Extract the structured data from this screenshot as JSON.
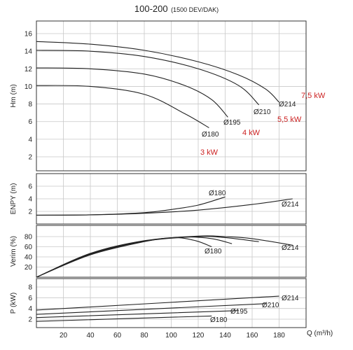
{
  "title": {
    "main": "100-200",
    "sub": "(1500 DEV/DAK)"
  },
  "chart_data": {
    "type": "line",
    "xlabel": "Q (m³/h)",
    "x_ticks": [
      20,
      40,
      60,
      80,
      100,
      120,
      140,
      160,
      180
    ],
    "xlim": [
      0,
      200
    ],
    "grid": true,
    "panels": [
      {
        "id": "head",
        "ylabel": "Hm (m)",
        "ylim": [
          0,
          17
        ],
        "y_ticks": [
          2,
          4,
          6,
          8,
          10,
          12,
          14,
          16
        ],
        "series": [
          {
            "name": "Ø214",
            "x": [
              0,
              40,
              80,
              120,
              150,
              170,
              180
            ],
            "y": [
              15.1,
              14.8,
              14.1,
              12.8,
              11.3,
              9.7,
              8.2
            ]
          },
          {
            "name": "Ø210",
            "x": [
              0,
              40,
              80,
              120,
              150,
              165
            ],
            "y": [
              14.1,
              14.0,
              13.4,
              12.0,
              10.1,
              7.9
            ]
          },
          {
            "name": "Ø195",
            "x": [
              0,
              40,
              80,
              110,
              130,
              142
            ],
            "y": [
              12.1,
              12.0,
              11.4,
              10.1,
              8.5,
              6.5
            ]
          },
          {
            "name": "Ø180",
            "x": [
              0,
              40,
              80,
              110,
              128
            ],
            "y": [
              10.1,
              10.0,
              9.1,
              6.9,
              5.3
            ]
          }
        ],
        "power_labels": [
          "7,5 kW",
          "5,5 kW",
          "4 kW",
          "3 kW"
        ]
      },
      {
        "id": "npsh",
        "ylabel": "ENPY (m)",
        "ylim": [
          0,
          8
        ],
        "y_ticks": [
          2,
          4,
          6
        ],
        "series": [
          {
            "name": "Ø214",
            "x": [
              0,
              40,
              80,
              120,
              160,
              190
            ],
            "y": [
              1.4,
              1.45,
              1.7,
              2.2,
              3.1,
              4.0
            ]
          },
          {
            "name": "Ø180",
            "x": [
              0,
              40,
              80,
              100,
              120,
              140
            ],
            "y": [
              1.4,
              1.45,
              1.8,
              2.3,
              3.0,
              4.3
            ]
          }
        ]
      },
      {
        "id": "efficiency",
        "ylabel": "Verim (%)",
        "ylim": [
          0,
          100
        ],
        "y_ticks": [
          20,
          40,
          60,
          80
        ],
        "series": [
          {
            "name": "Ø214",
            "x": [
              0,
              40,
              80,
              120,
              140,
              160,
              190
            ],
            "y": [
              0,
              47,
              72,
              81,
              80,
              76,
              63
            ]
          },
          {
            "name": "Ø210",
            "x": [
              0,
              40,
              80,
              120,
              140,
              165
            ],
            "y": [
              0,
              46,
              71,
              80,
              78,
              70
            ]
          },
          {
            "name": "Ø195",
            "x": [
              0,
              40,
              80,
              110,
              130,
              145
            ],
            "y": [
              0,
              45,
              71,
              79,
              76,
              66
            ]
          },
          {
            "name": "Ø180",
            "x": [
              0,
              40,
              80,
              102,
              118,
              130
            ],
            "y": [
              0,
              44,
              70,
              78,
              72,
              60
            ]
          }
        ]
      },
      {
        "id": "power",
        "ylabel": "P (kW)",
        "ylim": [
          0,
          10
        ],
        "y_ticks": [
          2,
          4,
          6,
          8
        ],
        "series": [
          {
            "name": "Ø214",
            "x": [
              0,
              180
            ],
            "y": [
              3.7,
              6.3
            ]
          },
          {
            "name": "Ø210",
            "x": [
              0,
              170
            ],
            "y": [
              2.9,
              4.9
            ]
          },
          {
            "name": "Ø195",
            "x": [
              0,
              150
            ],
            "y": [
              2.3,
              3.6
            ]
          },
          {
            "name": "Ø180",
            "x": [
              0,
              130
            ],
            "y": [
              1.6,
              2.6
            ]
          }
        ]
      }
    ]
  }
}
